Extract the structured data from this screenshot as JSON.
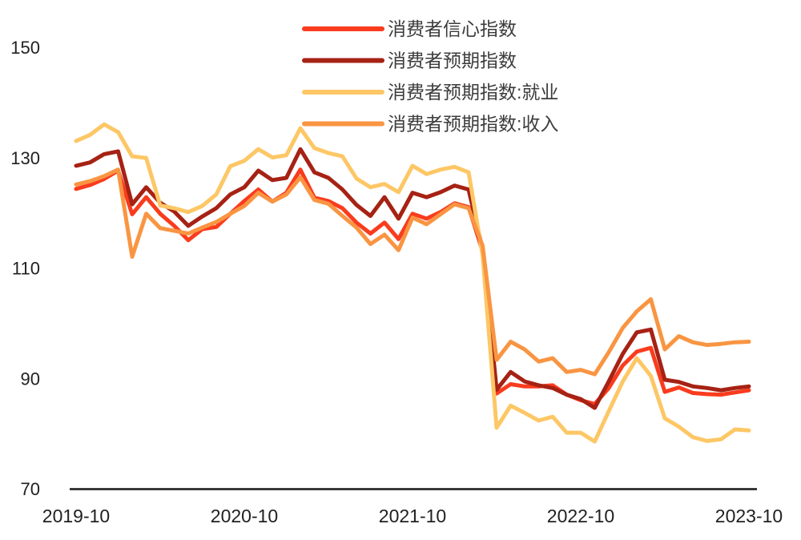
{
  "chart_data": {
    "type": "line",
    "title": "",
    "x_start": "2019-10",
    "x_end": "2023-10",
    "x_unit": "month",
    "n_points": 49,
    "x_tick_labels": [
      "2019-10",
      "2020-10",
      "2021-10",
      "2022-10",
      "2023-10"
    ],
    "x_tick_month_index": [
      0,
      12,
      24,
      36,
      48
    ],
    "y_ticks": [
      70,
      90,
      110,
      130,
      150
    ],
    "ylim": [
      70,
      150
    ],
    "grid": false,
    "legend_position": "top-center",
    "axis_color": "#2a2a2a",
    "tick_text_color": "#212121",
    "legend_text_color": "#3c3c3c",
    "series": [
      {
        "key": "cci",
        "name": "消费者信心指数",
        "color": "#F93C1E",
        "values": [
          124.5,
          125.2,
          126.3,
          127.8,
          119.9,
          123.0,
          120.0,
          117.8,
          115.2,
          117.2,
          117.6,
          120.0,
          122.3,
          124.4,
          122.2,
          123.8,
          128.0,
          122.9,
          122.3,
          121.0,
          118.4,
          116.4,
          118.4,
          115.4,
          120.0,
          119.1,
          120.3,
          121.9,
          121.2,
          113.2,
          87.4,
          89.1,
          88.7,
          88.7,
          88.9,
          87.2,
          86.2,
          85.5,
          88.4,
          92.5,
          95.0,
          95.7,
          87.7,
          88.5,
          87.5,
          87.3,
          87.2,
          87.6,
          88.0
        ]
      },
      {
        "key": "expectation",
        "name": "消费者预期指数",
        "color": "#A62214",
        "values": [
          128.7,
          129.3,
          130.8,
          131.3,
          121.7,
          124.8,
          122.0,
          120.4,
          117.8,
          119.5,
          121.0,
          123.5,
          124.8,
          127.8,
          126.1,
          126.5,
          131.7,
          127.5,
          126.5,
          124.4,
          121.6,
          119.6,
          123.0,
          119.1,
          123.8,
          123.0,
          123.9,
          125.1,
          124.4,
          113.5,
          88.1,
          91.3,
          89.6,
          88.9,
          88.4,
          87.2,
          86.4,
          84.8,
          89.6,
          94.6,
          98.5,
          99.0,
          89.9,
          89.5,
          88.7,
          88.4,
          88.0,
          88.4,
          88.7
        ]
      },
      {
        "key": "expectation_employment",
        "name": "消费者预期指数:就业",
        "color": "#FDC766",
        "values": [
          133.2,
          134.3,
          136.2,
          134.8,
          130.4,
          130.1,
          121.5,
          121.0,
          120.3,
          121.4,
          123.5,
          128.6,
          129.6,
          131.7,
          130.2,
          130.6,
          135.5,
          131.9,
          131.0,
          130.4,
          126.4,
          124.8,
          125.4,
          123.9,
          128.7,
          127.2,
          128.0,
          128.5,
          127.5,
          112.5,
          81.2,
          85.2,
          83.9,
          82.5,
          83.2,
          80.3,
          80.3,
          78.7,
          84.2,
          89.6,
          93.8,
          90.6,
          82.9,
          81.4,
          79.5,
          78.8,
          79.1,
          80.9,
          80.7
        ]
      },
      {
        "key": "expectation_income",
        "name": "消费者预期指数:收入",
        "color": "#F99542",
        "values": [
          125.3,
          125.9,
          126.8,
          128.0,
          112.2,
          120.0,
          117.4,
          116.9,
          116.4,
          117.5,
          118.5,
          120.0,
          121.4,
          123.8,
          122.2,
          123.5,
          126.6,
          122.5,
          121.8,
          119.6,
          117.5,
          114.5,
          116.2,
          113.4,
          119.3,
          118.1,
          119.9,
          121.7,
          121.0,
          114.2,
          93.5,
          96.8,
          95.4,
          93.2,
          93.8,
          91.3,
          91.7,
          90.9,
          94.9,
          99.3,
          102.3,
          104.5,
          95.4,
          97.8,
          96.7,
          96.2,
          96.4,
          96.7,
          96.8
        ]
      }
    ]
  }
}
